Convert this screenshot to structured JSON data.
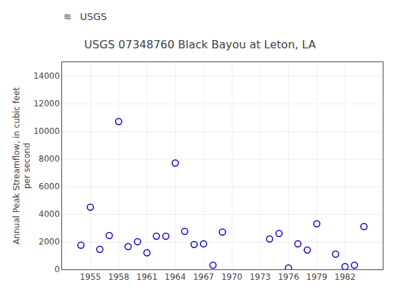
{
  "chart_data": {
    "type": "scatter",
    "title": "USGS 07348760 Black Bayou at Leton, LA",
    "ylabel": "Annual Peak Streamflow, in cubic feet\nper second",
    "annotations": [
      "≋",
      "USGS"
    ],
    "x": [
      1954,
      1955,
      1956,
      1957,
      1958,
      1959,
      1960,
      1961,
      1962,
      1963,
      1964,
      1965,
      1966,
      1967,
      1968,
      1969,
      1974,
      1975,
      1976,
      1977,
      1978,
      1979,
      1981,
      1982,
      1983,
      1984
    ],
    "values": [
      1750,
      4500,
      1450,
      2450,
      10700,
      1650,
      2000,
      1200,
      2400,
      2400,
      7700,
      2750,
      1800,
      1850,
      300,
      2700,
      2200,
      2600,
      100,
      1850,
      1400,
      3300,
      1100,
      200,
      300,
      3100
    ],
    "color": "#0000CC",
    "marker": "circle-open",
    "xlim": [
      1952,
      1986
    ],
    "ylim": [
      0,
      15000
    ],
    "xticks": [
      1955,
      1958,
      1961,
      1964,
      1967,
      1970,
      1973,
      1976,
      1979,
      1982
    ],
    "yticks": [
      0,
      2000,
      4000,
      6000,
      8000,
      10000,
      12000,
      14000
    ],
    "grid": true
  }
}
